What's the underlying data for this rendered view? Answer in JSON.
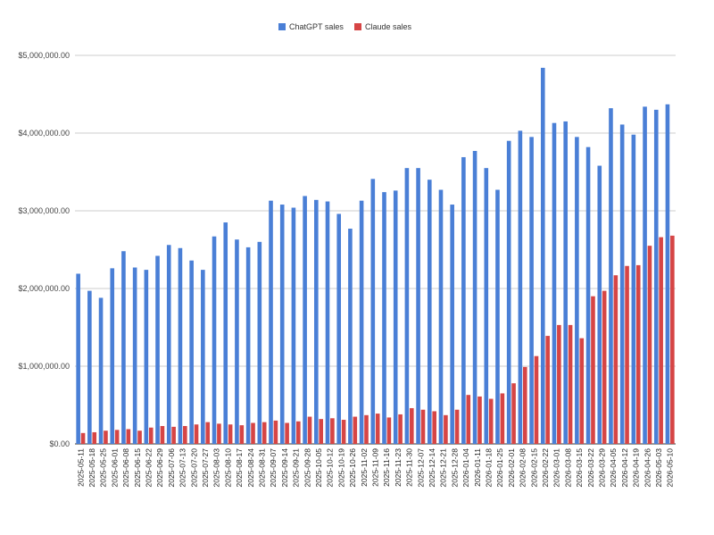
{
  "chart_data": {
    "type": "bar",
    "title": "",
    "xlabel": "",
    "ylabel": "",
    "ylim": [
      0,
      5000000
    ],
    "yticks": [
      0,
      1000000,
      2000000,
      3000000,
      4000000,
      5000000
    ],
    "ytick_labels": [
      "$0.00",
      "$1,000,000.00",
      "$2,000,000.00",
      "$3,000,000.00",
      "$4,000,000.00",
      "$5,000,000.00"
    ],
    "grid": true,
    "legend_position": "top-center",
    "categories": [
      "2025-05-11",
      "2025-05-18",
      "2025-05-25",
      "2025-06-01",
      "2025-06-08",
      "2025-06-15",
      "2025-06-22",
      "2025-06-29",
      "2025-07-06",
      "2025-07-13",
      "2025-07-20",
      "2025-07-27",
      "2025-08-03",
      "2025-08-10",
      "2025-08-17",
      "2025-08-24",
      "2025-08-31",
      "2025-09-07",
      "2025-09-14",
      "2025-09-21",
      "2025-09-28",
      "2025-10-05",
      "2025-10-12",
      "2025-10-19",
      "2025-10-26",
      "2025-11-02",
      "2025-11-09",
      "2025-11-16",
      "2025-11-23",
      "2025-11-30",
      "2025-12-07",
      "2025-12-14",
      "2025-12-21",
      "2025-12-28",
      "2026-01-04",
      "2026-01-11",
      "2026-01-18",
      "2026-01-25",
      "2026-02-01",
      "2026-02-08",
      "2026-02-15",
      "2026-02-22",
      "2026-03-01",
      "2026-03-08",
      "2026-03-15",
      "2026-03-22",
      "2026-03-29",
      "2026-04-05",
      "2026-04-12",
      "2026-04-19",
      "2026-04-26",
      "2026-05-03",
      "2026-05-10"
    ],
    "series": [
      {
        "name": "ChatGPT sales",
        "color": "#4a7fd6",
        "values": [
          2190000,
          1970000,
          1880000,
          2260000,
          2480000,
          2270000,
          2240000,
          2420000,
          2560000,
          2520000,
          2360000,
          2240000,
          2670000,
          2850000,
          2630000,
          2530000,
          2600000,
          3130000,
          3080000,
          3040000,
          3190000,
          3140000,
          3120000,
          2960000,
          2770000,
          3130000,
          3410000,
          3240000,
          3260000,
          3550000,
          3550000,
          3400000,
          3270000,
          3080000,
          3690000,
          3770000,
          3550000,
          3270000,
          3900000,
          4030000,
          3950000,
          4840000,
          4130000,
          4150000,
          3950000,
          3820000,
          3580000,
          4320000,
          4110000,
          3980000,
          4340000,
          4300000,
          4370000
        ]
      },
      {
        "name": "Claude sales",
        "color": "#d64545",
        "values": [
          140000,
          150000,
          170000,
          180000,
          190000,
          170000,
          210000,
          230000,
          220000,
          230000,
          250000,
          280000,
          260000,
          250000,
          240000,
          270000,
          280000,
          300000,
          270000,
          290000,
          350000,
          320000,
          330000,
          310000,
          350000,
          370000,
          390000,
          340000,
          380000,
          460000,
          440000,
          420000,
          370000,
          440000,
          630000,
          610000,
          580000,
          650000,
          780000,
          990000,
          1130000,
          1390000,
          1530000,
          1530000,
          1360000,
          1900000,
          1970000,
          2170000,
          2290000,
          2300000,
          2550000,
          2660000,
          2680000
        ]
      }
    ]
  }
}
